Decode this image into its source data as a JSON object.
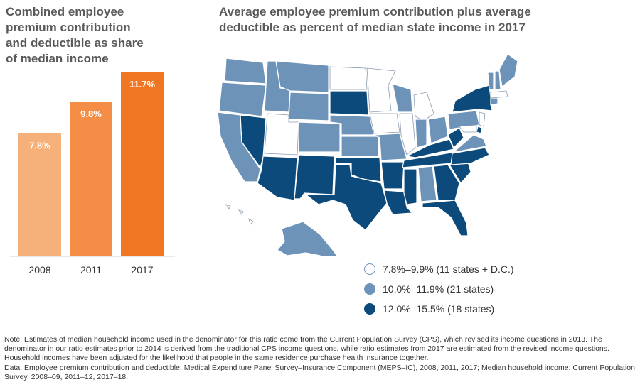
{
  "bar_chart_title": "Combined employee\npremium contribution\nand deductible as share\nof median income",
  "map_title": "Average employee premium contribution plus average\ndeductible as percent of median state income in 2017",
  "chart_data": [
    {
      "type": "bar",
      "title": "Combined employee premium contribution and deductible as share of median income",
      "categories": [
        "2008",
        "2011",
        "2017"
      ],
      "values": [
        7.8,
        9.8,
        11.7
      ],
      "value_labels": [
        "7.8%",
        "9.8%",
        "11.7%"
      ],
      "colors": [
        "#f6b07a",
        "#f48e47",
        "#f07622"
      ],
      "xlabel": "",
      "ylabel": "",
      "ylim": [
        0,
        13.5
      ],
      "grid": false
    }
  ],
  "map": {
    "type": "choropleth",
    "colors": {
      "low": "#ffffff",
      "mid": "#6e93b8",
      "high": "#0b4a7a"
    },
    "legend": [
      {
        "key": "low",
        "label": "7.8%–9.9% (11 states + D.C.)"
      },
      {
        "key": "mid",
        "label": "10.0%–11.9% (21 states)"
      },
      {
        "key": "high",
        "label": "12.0%–15.5% (18 states)"
      }
    ]
  },
  "notes": {
    "note": "Note: Estimates of median household income used in the denominator for this ratio come from the Current Population Survey (CPS), which revised its income questions in 2013. The denominator in our ratio estimates prior to 2014 is derived from the traditional CPS income questions, while ratio estimates from 2017 are estimated from the revised income questions. Household incomes have been adjusted for the likelihood that people in the same residence purchase health insurance together.",
    "data": "Data: Employee premium contribution and deductible: Medical Expenditure Panel Survey–Insurance Component (MEPS–IC), 2008, 2011, 2017; Median household income: Current Population Survey, 2008–09, 2011–12, 2017–18."
  }
}
